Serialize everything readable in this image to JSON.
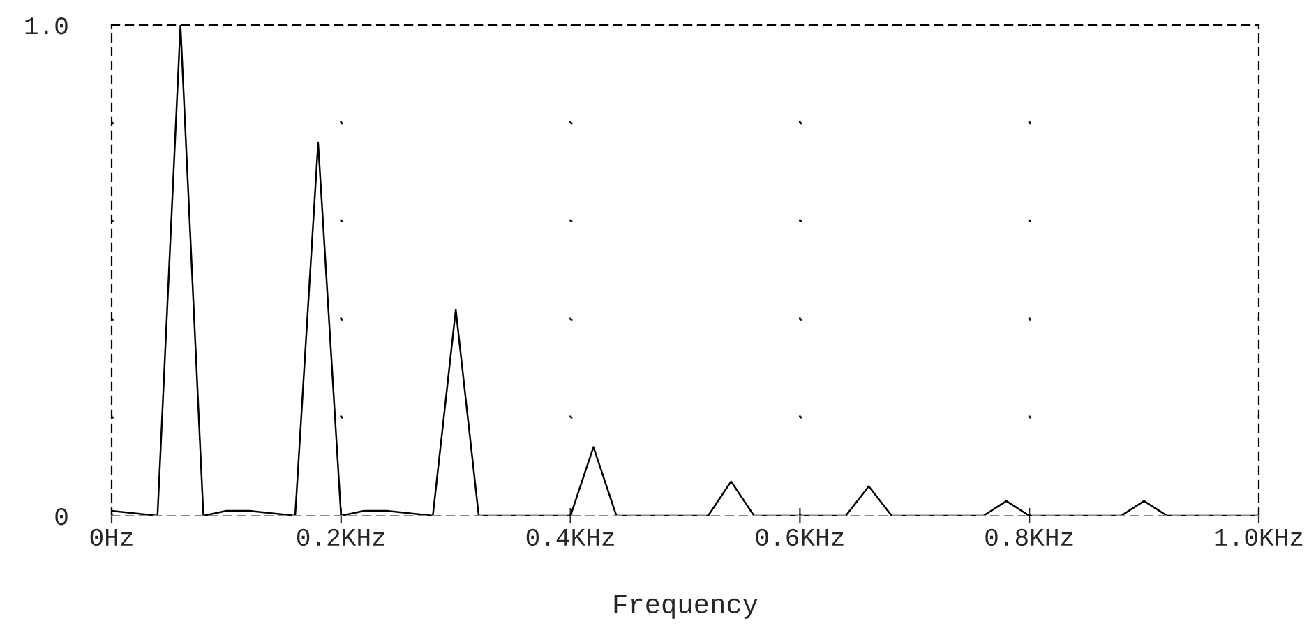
{
  "chart_data": {
    "type": "line",
    "xlabel": "Frequency",
    "x": [
      0,
      0.04,
      0.06,
      0.08,
      0.1,
      0.12,
      0.16,
      0.18,
      0.2,
      0.22,
      0.24,
      0.28,
      0.3,
      0.32,
      0.34,
      0.36,
      0.4,
      0.42,
      0.44,
      0.52,
      0.54,
      0.56,
      0.58,
      0.6,
      0.62,
      0.64,
      0.66,
      0.68,
      0.76,
      0.78,
      0.8,
      0.88,
      0.9,
      0.92,
      1.0
    ],
    "series": [
      {
        "color": "#000000",
        "values": [
          0.01,
          0,
          1.0,
          0,
          0.01,
          0.01,
          0,
          0.76,
          0,
          0.01,
          0.01,
          0,
          0.42,
          0,
          0,
          0,
          0,
          0.14,
          0,
          0,
          0.07,
          0,
          0,
          0,
          0,
          0,
          0.06,
          0,
          0,
          0.03,
          0,
          0,
          0.03,
          0,
          0
        ]
      }
    ],
    "xlim": [
      0,
      1.0
    ],
    "ylim": [
      0,
      1.0
    ],
    "xticks": [
      {
        "value": 0,
        "label": "0Hz"
      },
      {
        "value": 0.2,
        "label": "0.2KHz"
      },
      {
        "value": 0.4,
        "label": "0.4KHz"
      },
      {
        "value": 0.6,
        "label": "0.6KHz"
      },
      {
        "value": 0.8,
        "label": "0.8KHz"
      },
      {
        "value": 1.0,
        "label": "1.0KHz"
      }
    ],
    "yticks": [
      0,
      {
        "value": 0.2,
        "label": null
      },
      {
        "value": 0.4,
        "label": null
      },
      {
        "value": 0.6,
        "label": null
      },
      {
        "value": 0.8,
        "label": null
      },
      {
        "value": 1.0,
        "label": "1.0"
      }
    ],
    "grid": true,
    "legend": false,
    "marker": "none",
    "line_style": "solid"
  }
}
